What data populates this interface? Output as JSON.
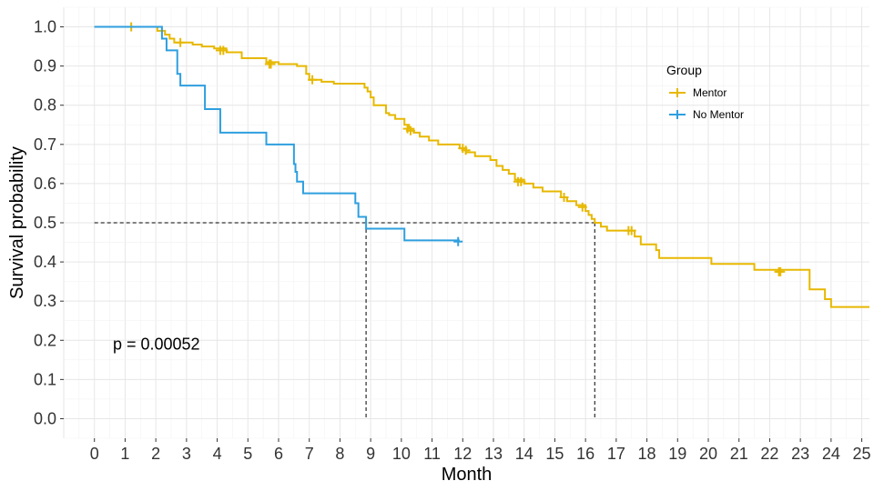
{
  "chart_data": {
    "type": "line",
    "subtype": "kaplan-meier step",
    "xlabel": "Month",
    "ylabel": "Survival probability",
    "xlim": [
      -1,
      25.25
    ],
    "ylim": [
      -0.05,
      1.05
    ],
    "x_ticks": [
      0,
      1,
      2,
      3,
      4,
      5,
      6,
      7,
      8,
      9,
      10,
      11,
      12,
      13,
      14,
      15,
      16,
      17,
      18,
      19,
      20,
      21,
      22,
      23,
      24,
      25
    ],
    "y_ticks": [
      0.0,
      0.1,
      0.2,
      0.3,
      0.4,
      0.5,
      0.6,
      0.7,
      0.8,
      0.9,
      1.0
    ],
    "y_tick_labels": [
      "0.0",
      "0.1",
      "0.2",
      "0.3",
      "0.4",
      "0.5",
      "0.6",
      "0.7",
      "0.8",
      "0.9",
      "1.0"
    ],
    "grid": true,
    "annotation": "p = 0.00052",
    "annotation_pos": {
      "x": 0.6,
      "y": 0.19
    },
    "legend": {
      "title": "Group",
      "position": "top-right",
      "entries": [
        "Mentor",
        "No Mentor"
      ]
    },
    "median_line": {
      "y": 0.5,
      "x_start": 0,
      "medians": [
        8.85,
        16.3
      ]
    },
    "series": [
      {
        "name": "Mentor",
        "color": "#E7B800",
        "steps": [
          [
            0,
            1.0
          ],
          [
            2.0,
            1.0
          ],
          [
            2.05,
            0.99
          ],
          [
            2.3,
            0.98
          ],
          [
            2.45,
            0.97
          ],
          [
            2.6,
            0.96
          ],
          [
            3.2,
            0.955
          ],
          [
            3.5,
            0.95
          ],
          [
            3.9,
            0.945
          ],
          [
            4.3,
            0.935
          ],
          [
            4.8,
            0.92
          ],
          [
            5.6,
            0.91
          ],
          [
            6.0,
            0.905
          ],
          [
            6.6,
            0.9
          ],
          [
            6.9,
            0.88
          ],
          [
            7.0,
            0.865
          ],
          [
            7.4,
            0.86
          ],
          [
            7.8,
            0.855
          ],
          [
            8.8,
            0.845
          ],
          [
            8.9,
            0.835
          ],
          [
            9.0,
            0.82
          ],
          [
            9.1,
            0.8
          ],
          [
            9.5,
            0.78
          ],
          [
            9.6,
            0.775
          ],
          [
            9.8,
            0.765
          ],
          [
            10.1,
            0.75
          ],
          [
            10.25,
            0.74
          ],
          [
            10.4,
            0.73
          ],
          [
            10.6,
            0.72
          ],
          [
            10.9,
            0.71
          ],
          [
            11.2,
            0.7
          ],
          [
            11.9,
            0.69
          ],
          [
            12.1,
            0.68
          ],
          [
            12.4,
            0.67
          ],
          [
            12.9,
            0.66
          ],
          [
            13.1,
            0.645
          ],
          [
            13.3,
            0.635
          ],
          [
            13.5,
            0.625
          ],
          [
            13.7,
            0.61
          ],
          [
            14.0,
            0.6
          ],
          [
            14.3,
            0.59
          ],
          [
            14.6,
            0.58
          ],
          [
            15.2,
            0.565
          ],
          [
            15.4,
            0.555
          ],
          [
            15.7,
            0.545
          ],
          [
            16.0,
            0.53
          ],
          [
            16.1,
            0.52
          ],
          [
            16.2,
            0.51
          ],
          [
            16.3,
            0.5
          ],
          [
            16.5,
            0.49
          ],
          [
            16.7,
            0.48
          ],
          [
            17.6,
            0.465
          ],
          [
            17.8,
            0.445
          ],
          [
            18.3,
            0.43
          ],
          [
            18.4,
            0.41
          ],
          [
            20.1,
            0.395
          ],
          [
            21.5,
            0.38
          ],
          [
            23.3,
            0.33
          ],
          [
            23.8,
            0.305
          ],
          [
            24.0,
            0.285
          ],
          [
            25.25,
            0.285
          ]
        ],
        "censor_points": [
          [
            1.2,
            1.0
          ],
          [
            2.8,
            0.96
          ],
          [
            4.1,
            0.94
          ],
          [
            4.2,
            0.94
          ],
          [
            5.7,
            0.905
          ],
          [
            5.75,
            0.905
          ],
          [
            7.1,
            0.865
          ],
          [
            10.2,
            0.74
          ],
          [
            10.3,
            0.735
          ],
          [
            12.0,
            0.69
          ],
          [
            12.1,
            0.685
          ],
          [
            13.8,
            0.605
          ],
          [
            13.9,
            0.605
          ],
          [
            15.3,
            0.565
          ],
          [
            15.9,
            0.54
          ],
          [
            17.4,
            0.48
          ],
          [
            17.5,
            0.48
          ],
          [
            22.3,
            0.375
          ],
          [
            22.35,
            0.375
          ]
        ]
      },
      {
        "name": "No Mentor",
        "color": "#2E9FDF",
        "steps": [
          [
            0,
            1.0
          ],
          [
            2.1,
            1.0
          ],
          [
            2.2,
            0.97
          ],
          [
            2.35,
            0.94
          ],
          [
            2.7,
            0.88
          ],
          [
            2.8,
            0.85
          ],
          [
            3.6,
            0.79
          ],
          [
            4.1,
            0.73
          ],
          [
            5.6,
            0.7
          ],
          [
            6.5,
            0.65
          ],
          [
            6.55,
            0.63
          ],
          [
            6.6,
            0.605
          ],
          [
            6.8,
            0.575
          ],
          [
            8.5,
            0.55
          ],
          [
            8.6,
            0.515
          ],
          [
            8.85,
            0.485
          ],
          [
            10.1,
            0.455
          ],
          [
            11.9,
            0.455
          ]
        ],
        "censor_points": [
          [
            11.85,
            0.452
          ]
        ]
      }
    ]
  }
}
